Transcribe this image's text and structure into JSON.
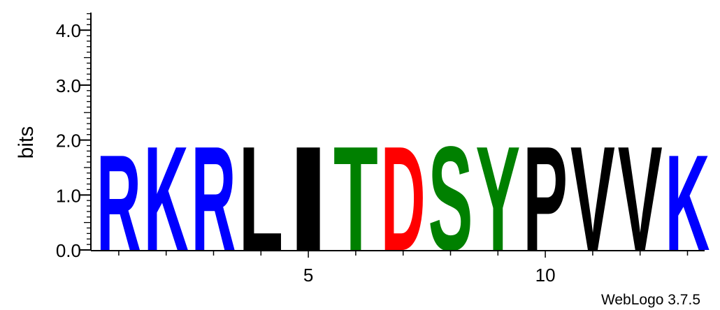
{
  "chart_data": {
    "type": "sequence-logo",
    "ylabel": "bits",
    "ylim": [
      0,
      4.32
    ],
    "y_ticks": [
      "0.0",
      "1.0",
      "2.0",
      "3.0",
      "4.0"
    ],
    "y_tick_values": [
      0,
      1,
      2,
      3,
      4
    ],
    "x_ticks": [
      "5",
      "10"
    ],
    "x_tick_positions": [
      5,
      10
    ],
    "positions": [
      {
        "position": 1,
        "letter": "R",
        "bits": 1.78,
        "color": "#0000ff"
      },
      {
        "position": 2,
        "letter": "K",
        "bits": 1.94,
        "color": "#0000ff"
      },
      {
        "position": 3,
        "letter": "R",
        "bits": 1.94,
        "color": "#0000ff"
      },
      {
        "position": 4,
        "letter": "L",
        "bits": 1.94,
        "color": "#000000"
      },
      {
        "position": 5,
        "letter": "I",
        "bits": 1.94,
        "color": "#000000"
      },
      {
        "position": 6,
        "letter": "T",
        "bits": 1.94,
        "color": "#008000"
      },
      {
        "position": 7,
        "letter": "D",
        "bits": 1.94,
        "color": "#ff0000"
      },
      {
        "position": 8,
        "letter": "S",
        "bits": 1.94,
        "color": "#008000"
      },
      {
        "position": 9,
        "letter": "Y",
        "bits": 1.94,
        "color": "#008000"
      },
      {
        "position": 10,
        "letter": "P",
        "bits": 1.94,
        "color": "#000000"
      },
      {
        "position": 11,
        "letter": "V",
        "bits": 1.94,
        "color": "#000000"
      },
      {
        "position": 12,
        "letter": "V",
        "bits": 1.94,
        "color": "#000000"
      },
      {
        "position": 13,
        "letter": "K",
        "bits": 1.78,
        "color": "#0000ff"
      }
    ],
    "footer": "WebLogo 3.7.5"
  }
}
